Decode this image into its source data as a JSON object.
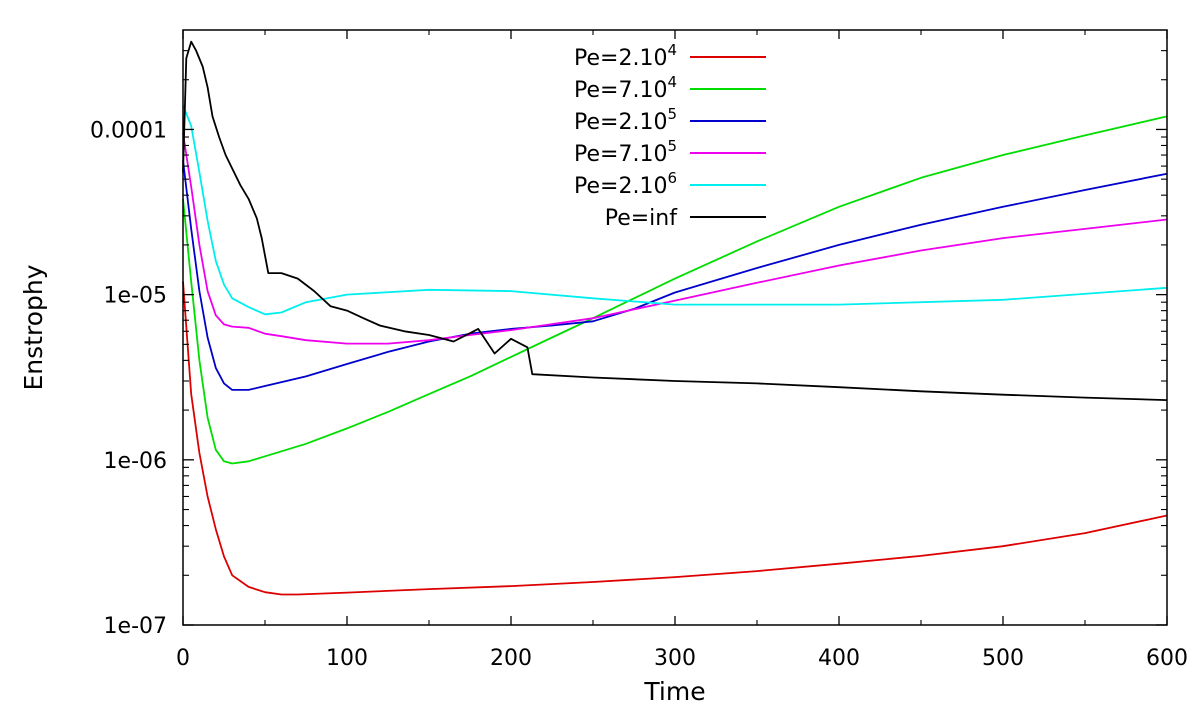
{
  "chart_data": {
    "type": "line",
    "title": "",
    "xlabel": "Time",
    "ylabel": "Enstrophy",
    "xlim": [
      0,
      600
    ],
    "ylim": [
      1e-07,
      0.0004
    ],
    "yscale": "log",
    "grid": false,
    "legend_position": "top-center",
    "x_ticks": [
      0,
      100,
      200,
      300,
      400,
      500,
      600
    ],
    "x_tick_labels": [
      "0",
      "100",
      "200",
      "300",
      "400",
      "500",
      "600"
    ],
    "y_ticks": [
      1e-07,
      1e-06,
      1e-05,
      0.0001
    ],
    "y_tick_labels": [
      "1e-07",
      "1e-06",
      "1e-05",
      "0.0001"
    ],
    "series": [
      {
        "name": "Pe=2.10^4",
        "label_base": "Pe=2.10",
        "label_exp": "4",
        "color": "#dd0000",
        "points": [
          [
            0,
            1.2e-05
          ],
          [
            5,
            2.5e-06
          ],
          [
            10,
            1.1e-06
          ],
          [
            15,
            6e-07
          ],
          [
            20,
            3.8e-07
          ],
          [
            25,
            2.6e-07
          ],
          [
            30,
            2e-07
          ],
          [
            40,
            1.7e-07
          ],
          [
            50,
            1.58e-07
          ],
          [
            60,
            1.53e-07
          ],
          [
            70,
            1.53e-07
          ],
          [
            100,
            1.57e-07
          ],
          [
            150,
            1.65e-07
          ],
          [
            200,
            1.72e-07
          ],
          [
            250,
            1.82e-07
          ],
          [
            300,
            1.95e-07
          ],
          [
            350,
            2.12e-07
          ],
          [
            400,
            2.35e-07
          ],
          [
            450,
            2.62e-07
          ],
          [
            500,
            3e-07
          ],
          [
            550,
            3.6e-07
          ],
          [
            600,
            4.6e-07
          ]
        ]
      },
      {
        "name": "Pe=7.10^4",
        "label_base": "Pe=7.10",
        "label_exp": "4",
        "color": "#00dd00",
        "points": [
          [
            0,
            3.8e-05
          ],
          [
            5,
            1.2e-05
          ],
          [
            10,
            4e-06
          ],
          [
            15,
            1.8e-06
          ],
          [
            20,
            1.15e-06
          ],
          [
            25,
            9.8e-07
          ],
          [
            30,
            9.5e-07
          ],
          [
            40,
            9.8e-07
          ],
          [
            50,
            1.05e-06
          ],
          [
            75,
            1.25e-06
          ],
          [
            100,
            1.55e-06
          ],
          [
            125,
            1.95e-06
          ],
          [
            150,
            2.5e-06
          ],
          [
            175,
            3.2e-06
          ],
          [
            200,
            4.2e-06
          ],
          [
            225,
            5.5e-06
          ],
          [
            250,
            7.2e-06
          ],
          [
            275,
            9.5e-06
          ],
          [
            300,
            1.25e-05
          ],
          [
            350,
            2.1e-05
          ],
          [
            400,
            3.4e-05
          ],
          [
            450,
            5.1e-05
          ],
          [
            500,
            7e-05
          ],
          [
            550,
            9.2e-05
          ],
          [
            600,
            0.00012
          ]
        ]
      },
      {
        "name": "Pe=2.10^5",
        "label_base": "Pe=2.10",
        "label_exp": "5",
        "color": "#0000cc",
        "points": [
          [
            0,
            6.5e-05
          ],
          [
            5,
            2.5e-05
          ],
          [
            10,
            1.05e-05
          ],
          [
            15,
            5.5e-06
          ],
          [
            20,
            3.6e-06
          ],
          [
            25,
            2.9e-06
          ],
          [
            30,
            2.65e-06
          ],
          [
            40,
            2.65e-06
          ],
          [
            50,
            2.8e-06
          ],
          [
            75,
            3.2e-06
          ],
          [
            100,
            3.8e-06
          ],
          [
            125,
            4.5e-06
          ],
          [
            150,
            5.2e-06
          ],
          [
            175,
            5.8e-06
          ],
          [
            200,
            6.2e-06
          ],
          [
            225,
            6.5e-06
          ],
          [
            250,
            6.9e-06
          ],
          [
            275,
            8.2e-06
          ],
          [
            300,
            1.03e-05
          ],
          [
            350,
            1.45e-05
          ],
          [
            400,
            2e-05
          ],
          [
            450,
            2.65e-05
          ],
          [
            500,
            3.4e-05
          ],
          [
            550,
            4.3e-05
          ],
          [
            600,
            5.4e-05
          ]
        ]
      },
      {
        "name": "Pe=7.10^5",
        "label_base": "Pe=7.10",
        "label_exp": "5",
        "color": "#ee00ee",
        "points": [
          [
            0,
            9.5e-05
          ],
          [
            5,
            4.5e-05
          ],
          [
            10,
            2e-05
          ],
          [
            15,
            1.05e-05
          ],
          [
            20,
            7.5e-06
          ],
          [
            25,
            6.6e-06
          ],
          [
            30,
            6.4e-06
          ],
          [
            40,
            6.3e-06
          ],
          [
            50,
            5.8e-06
          ],
          [
            60,
            5.6e-06
          ],
          [
            75,
            5.3e-06
          ],
          [
            100,
            5.05e-06
          ],
          [
            125,
            5.05e-06
          ],
          [
            150,
            5.3e-06
          ],
          [
            175,
            5.7e-06
          ],
          [
            200,
            6.1e-06
          ],
          [
            250,
            7.2e-06
          ],
          [
            300,
            9.2e-06
          ],
          [
            350,
            1.18e-05
          ],
          [
            400,
            1.5e-05
          ],
          [
            450,
            1.85e-05
          ],
          [
            500,
            2.2e-05
          ],
          [
            550,
            2.5e-05
          ],
          [
            600,
            2.85e-05
          ]
        ]
      },
      {
        "name": "Pe=2.10^6",
        "label_base": "Pe=2.10",
        "label_exp": "6",
        "color": "#00eeee",
        "points": [
          [
            0,
            0.00014
          ],
          [
            5,
            0.000105
          ],
          [
            10,
            5.5e-05
          ],
          [
            15,
            2.8e-05
          ],
          [
            20,
            1.6e-05
          ],
          [
            25,
            1.15e-05
          ],
          [
            30,
            9.5e-06
          ],
          [
            40,
            8.4e-06
          ],
          [
            50,
            7.6e-06
          ],
          [
            60,
            7.8e-06
          ],
          [
            75,
            9e-06
          ],
          [
            100,
            1e-05
          ],
          [
            150,
            1.07e-05
          ],
          [
            200,
            1.05e-05
          ],
          [
            250,
            9.5e-06
          ],
          [
            300,
            8.7e-06
          ],
          [
            400,
            8.7e-06
          ],
          [
            500,
            9.3e-06
          ],
          [
            600,
            1.1e-05
          ]
        ]
      },
      {
        "name": "Pe=inf",
        "label_base": "Pe=inf",
        "label_exp": "",
        "color": "#000000",
        "points": [
          [
            0,
            5.5e-05
          ],
          [
            2,
            0.00027
          ],
          [
            5,
            0.00034
          ],
          [
            8,
            0.0003
          ],
          [
            12,
            0.00024
          ],
          [
            15,
            0.00018
          ],
          [
            18,
            0.00012
          ],
          [
            22,
            9e-05
          ],
          [
            26,
            7e-05
          ],
          [
            30,
            5.8e-05
          ],
          [
            35,
            4.6e-05
          ],
          [
            40,
            3.8e-05
          ],
          [
            45,
            2.9e-05
          ],
          [
            48,
            2.2e-05
          ],
          [
            52,
            1.35e-05
          ],
          [
            60,
            1.35e-05
          ],
          [
            70,
            1.25e-05
          ],
          [
            80,
            1.05e-05
          ],
          [
            90,
            8.5e-06
          ],
          [
            100,
            8e-06
          ],
          [
            110,
            7.2e-06
          ],
          [
            120,
            6.5e-06
          ],
          [
            135,
            6e-06
          ],
          [
            150,
            5.7e-06
          ],
          [
            165,
            5.2e-06
          ],
          [
            180,
            6.2e-06
          ],
          [
            190,
            4.4e-06
          ],
          [
            200,
            5.4e-06
          ],
          [
            210,
            4.8e-06
          ],
          [
            213,
            3.3e-06
          ],
          [
            250,
            3.15e-06
          ],
          [
            300,
            3e-06
          ],
          [
            350,
            2.9e-06
          ],
          [
            400,
            2.75e-06
          ],
          [
            450,
            2.6e-06
          ],
          [
            500,
            2.48e-06
          ],
          [
            550,
            2.38e-06
          ],
          [
            600,
            2.3e-06
          ]
        ]
      }
    ]
  }
}
